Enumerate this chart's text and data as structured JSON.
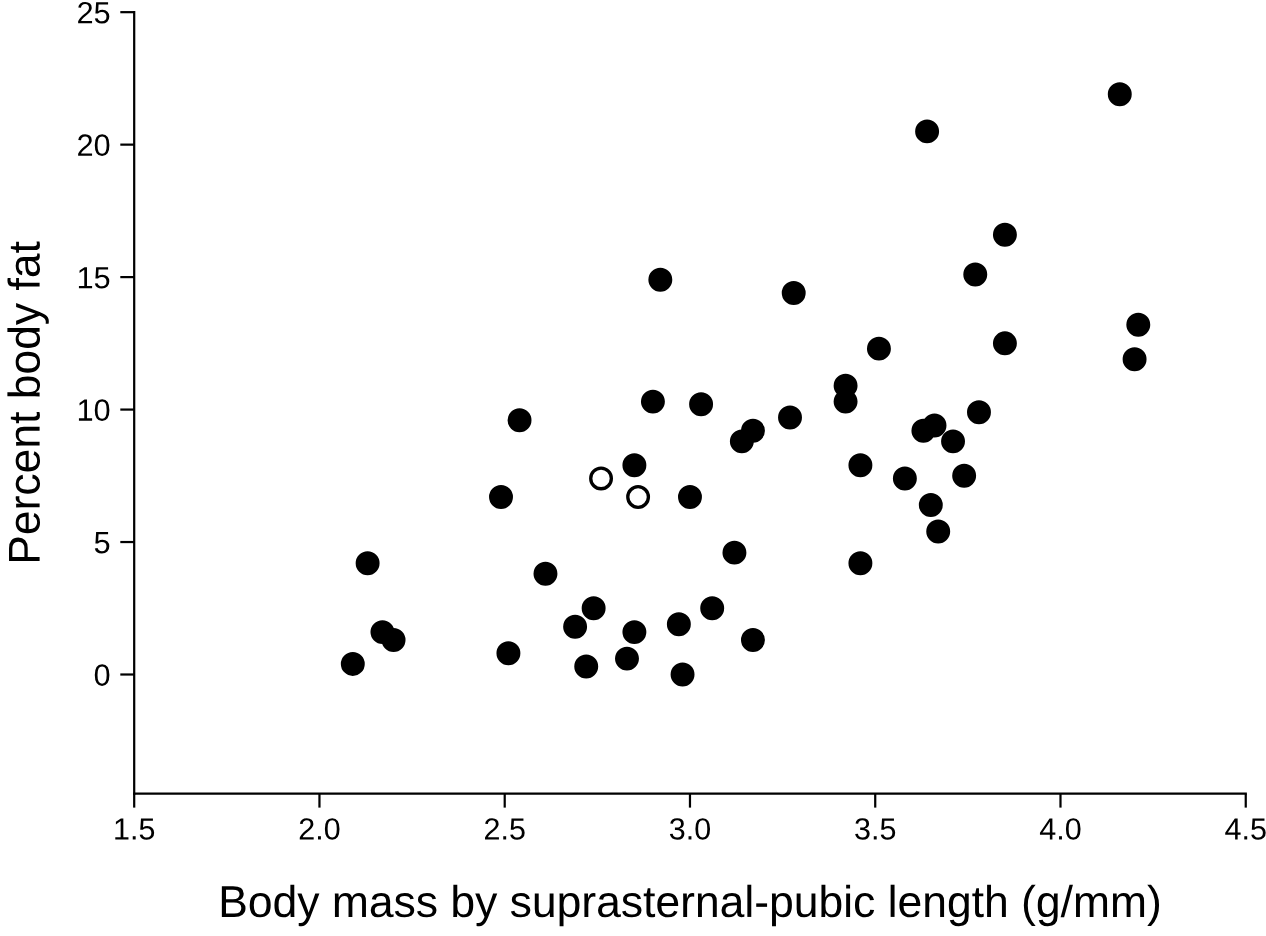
{
  "chart_data": {
    "type": "scatter",
    "xlabel": "Body mass by suprasternal-pubic length (g/mm)",
    "ylabel": "Percent body fat",
    "xlim": [
      1.5,
      4.5
    ],
    "xticks": [
      {
        "value": 1.5,
        "label": "1.5"
      },
      {
        "value": 2.0,
        "label": "2.0"
      },
      {
        "value": 2.5,
        "label": "2.5"
      },
      {
        "value": 3.0,
        "label": "3.0"
      },
      {
        "value": 3.5,
        "label": "3.5"
      },
      {
        "value": 4.0,
        "label": "4.0"
      },
      {
        "value": 4.5,
        "label": "4.5"
      }
    ],
    "ylim": [
      -4.5,
      25
    ],
    "yticks": [
      0,
      5,
      10,
      15,
      20,
      25
    ],
    "grid": false,
    "legend": false,
    "marker": "circle",
    "series": [
      {
        "color": "#000000",
        "x": [
          2.09,
          2.13,
          2.17,
          2.2,
          2.49,
          2.51,
          2.54,
          2.61,
          2.69,
          2.72,
          2.74,
          2.83,
          2.85,
          2.85,
          2.9,
          2.92,
          2.97,
          2.98,
          3.0,
          3.03,
          3.06,
          3.12,
          3.14,
          3.17,
          3.17,
          3.27,
          3.28,
          3.42,
          3.42,
          3.46,
          3.46,
          3.51,
          3.58,
          3.63,
          3.64,
          3.66,
          3.65,
          3.67,
          3.71,
          3.74,
          3.77,
          3.78,
          3.85,
          3.85,
          4.16,
          4.2,
          4.21
        ],
        "values": [
          0.4,
          4.2,
          1.6,
          1.3,
          6.7,
          0.8,
          9.6,
          3.8,
          1.8,
          0.3,
          2.5,
          0.6,
          1.6,
          7.9,
          10.3,
          14.9,
          1.9,
          0.0,
          6.7,
          10.2,
          2.5,
          4.6,
          8.8,
          9.2,
          1.3,
          9.7,
          14.4,
          10.9,
          10.3,
          7.9,
          4.2,
          12.3,
          7.4,
          9.2,
          20.5,
          9.4,
          6.4,
          5.4,
          8.8,
          7.5,
          15.1,
          9.9,
          16.6,
          12.5,
          21.9,
          11.9,
          13.2
        ]
      },
      {
        "color": "#ffffff",
        "x": [
          2.76,
          2.86
        ],
        "values": [
          7.4,
          6.7
        ]
      }
    ]
  }
}
